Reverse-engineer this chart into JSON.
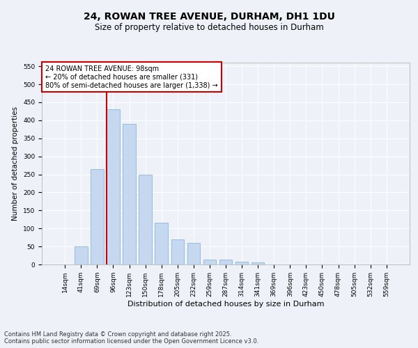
{
  "title": "24, ROWAN TREE AVENUE, DURHAM, DH1 1DU",
  "subtitle": "Size of property relative to detached houses in Durham",
  "xlabel": "Distribution of detached houses by size in Durham",
  "ylabel": "Number of detached properties",
  "categories": [
    "14sqm",
    "41sqm",
    "69sqm",
    "96sqm",
    "123sqm",
    "150sqm",
    "178sqm",
    "205sqm",
    "232sqm",
    "259sqm",
    "287sqm",
    "314sqm",
    "341sqm",
    "369sqm",
    "396sqm",
    "423sqm",
    "450sqm",
    "478sqm",
    "505sqm",
    "532sqm",
    "559sqm"
  ],
  "values": [
    0,
    50,
    265,
    430,
    390,
    250,
    115,
    70,
    60,
    13,
    13,
    7,
    5,
    0,
    0,
    0,
    0,
    0,
    0,
    0,
    0
  ],
  "bar_color": "#c5d8f0",
  "bar_edge_color": "#7aadd4",
  "bar_width": 0.8,
  "ylim": [
    0,
    560
  ],
  "yticks": [
    0,
    50,
    100,
    150,
    200,
    250,
    300,
    350,
    400,
    450,
    500,
    550
  ],
  "red_line_index": 3,
  "annotation_text": "24 ROWAN TREE AVENUE: 98sqm\n← 20% of detached houses are smaller (331)\n80% of semi-detached houses are larger (1,338) →",
  "annotation_box_color": "#ffffff",
  "annotation_box_edge_color": "#cc0000",
  "footer_line1": "Contains HM Land Registry data © Crown copyright and database right 2025.",
  "footer_line2": "Contains public sector information licensed under the Open Government Licence v3.0.",
  "background_color": "#eef2f8",
  "grid_color": "#ffffff",
  "title_fontsize": 10,
  "subtitle_fontsize": 8.5,
  "xlabel_fontsize": 8,
  "ylabel_fontsize": 7.5,
  "tick_fontsize": 6.5,
  "annotation_fontsize": 7,
  "footer_fontsize": 6
}
